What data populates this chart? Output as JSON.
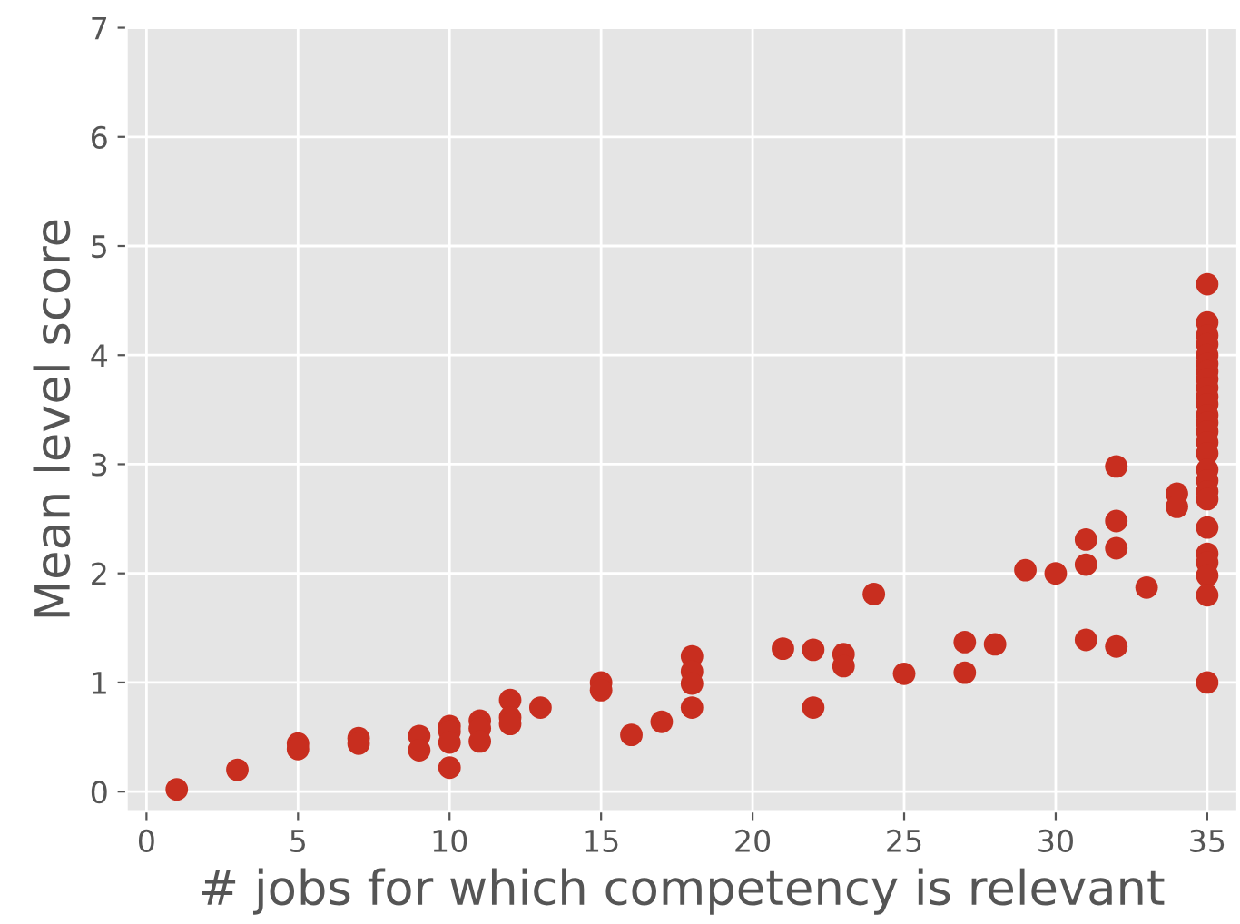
{
  "chart_data": {
    "type": "scatter",
    "xlabel": "# jobs for which competency is relevant",
    "ylabel": "Mean level score",
    "xlim": [
      -0.66,
      36.0
    ],
    "ylim": [
      -0.18,
      7
    ],
    "xticks": [
      0,
      5,
      10,
      15,
      20,
      25,
      30,
      35
    ],
    "yticks": [
      0,
      1,
      2,
      3,
      4,
      5,
      6,
      7
    ],
    "grid": true,
    "marker": "circle",
    "series": [
      {
        "color": "#c82e1f",
        "x": [
          1,
          3,
          5,
          5,
          7,
          7,
          9,
          9,
          10,
          10,
          10,
          10,
          11,
          11,
          11,
          12,
          12,
          12,
          13,
          15,
          15,
          16,
          17,
          18,
          18,
          18,
          18,
          21,
          22,
          22,
          23,
          23,
          24,
          25,
          27,
          27,
          28,
          29,
          30,
          31,
          31,
          31,
          32,
          32,
          32,
          32,
          33,
          34,
          34,
          35,
          35,
          35,
          35,
          35,
          35,
          35,
          35,
          35,
          35,
          35,
          35,
          35,
          35,
          35,
          35,
          35,
          35,
          35,
          35,
          35,
          35,
          35,
          35,
          35,
          35
        ],
        "values": [
          0.02,
          0.2,
          0.44,
          0.39,
          0.49,
          0.44,
          0.51,
          0.38,
          0.6,
          0.55,
          0.45,
          0.22,
          0.65,
          0.58,
          0.46,
          0.84,
          0.68,
          0.62,
          0.77,
          1.0,
          0.93,
          0.52,
          0.64,
          1.24,
          1.1,
          0.99,
          0.77,
          1.31,
          1.3,
          0.77,
          1.26,
          1.15,
          1.81,
          1.08,
          1.37,
          1.09,
          1.35,
          2.03,
          2.0,
          2.31,
          2.08,
          1.39,
          2.98,
          2.48,
          2.23,
          1.33,
          1.87,
          2.73,
          2.61,
          4.65,
          4.3,
          4.18,
          4.1,
          4.0,
          3.92,
          3.85,
          3.78,
          3.7,
          3.62,
          3.55,
          3.45,
          3.38,
          3.3,
          3.2,
          3.1,
          2.95,
          2.85,
          2.75,
          2.68,
          2.42,
          2.18,
          2.1,
          1.98,
          1.8,
          1.0
        ]
      }
    ]
  }
}
